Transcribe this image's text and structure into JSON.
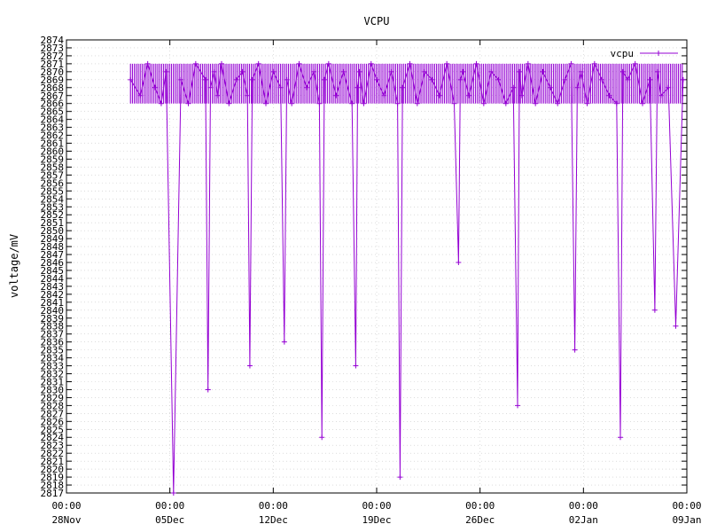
{
  "chart_data": {
    "type": "line",
    "title": "VCPU",
    "xlabel": "",
    "ylabel": "voltage/mV",
    "legend": {
      "position": "top-right"
    },
    "grid": true,
    "ylim": [
      2817,
      2874
    ],
    "xlim": [
      "2023-11-28 00:00",
      "2024-01-09 00:00"
    ],
    "x_ticks": [
      {
        "date": "2023-11-28",
        "time": "00:00",
        "label": "28Nov"
      },
      {
        "date": "2023-12-05",
        "time": "00:00",
        "label": "05Dec"
      },
      {
        "date": "2023-12-12",
        "time": "00:00",
        "label": "12Dec"
      },
      {
        "date": "2023-12-19",
        "time": "00:00",
        "label": "19Dec"
      },
      {
        "date": "2023-12-26",
        "time": "00:00",
        "label": "26Dec"
      },
      {
        "date": "2024-01-02",
        "time": "00:00",
        "label": "02Jan"
      },
      {
        "date": "2024-01-09",
        "time": "00:00",
        "label": "09Jan"
      }
    ],
    "series": [
      {
        "name": "vcpu",
        "color": "#9400d3",
        "marker": "+",
        "baseline_range": [
          2866,
          2871
        ],
        "x": [
          "2023-12-02 08:00",
          "2023-12-03 00:00",
          "2023-12-03 12:00",
          "2023-12-04 00:00",
          "2023-12-04 10:00",
          "2023-12-04 18:00",
          "2023-12-05 06:00",
          "2023-12-05 18:00",
          "2023-12-06 06:00",
          "2023-12-06 18:00",
          "2023-12-07 10:00",
          "2023-12-07 14:00",
          "2023-12-07 18:00",
          "2023-12-08 00:00",
          "2023-12-08 06:00",
          "2023-12-08 12:00",
          "2023-12-09 00:00",
          "2023-12-09 12:00",
          "2023-12-09 22:00",
          "2023-12-10 06:00",
          "2023-12-10 10:00",
          "2023-12-10 14:00",
          "2023-12-11 00:00",
          "2023-12-11 12:00",
          "2023-12-12 00:00",
          "2023-12-12 12:00",
          "2023-12-12 18:00",
          "2023-12-12 22:00",
          "2023-12-13 06:00",
          "2023-12-13 18:00",
          "2023-12-14 06:00",
          "2023-12-14 18:00",
          "2023-12-15 03:00",
          "2023-12-15 07:00",
          "2023-12-15 11:00",
          "2023-12-15 18:00",
          "2023-12-16 06:00",
          "2023-12-16 18:00",
          "2023-12-17 08:00",
          "2023-12-17 14:00",
          "2023-12-17 17:00",
          "2023-12-17 20:00",
          "2023-12-18 03:00",
          "2023-12-18 15:00",
          "2023-12-19 00:00",
          "2023-12-19 12:00",
          "2023-12-20 00:00",
          "2023-12-20 10:00",
          "2023-12-20 14:00",
          "2023-12-20 18:00",
          "2023-12-21 06:00",
          "2023-12-21 18:00",
          "2023-12-22 06:00",
          "2023-12-22 18:00",
          "2023-12-23 06:00",
          "2023-12-23 18:00",
          "2023-12-24 06:00",
          "2023-12-24 13:00",
          "2023-12-24 16:00",
          "2023-12-24 20:00",
          "2023-12-25 06:00",
          "2023-12-25 18:00",
          "2023-12-26 06:00",
          "2023-12-26 18:00",
          "2023-12-27 06:00",
          "2023-12-27 18:00",
          "2023-12-28 06:00",
          "2023-12-28 13:00",
          "2023-12-28 16:00",
          "2023-12-28 20:00",
          "2023-12-29 06:00",
          "2023-12-29 18:00",
          "2023-12-30 06:00",
          "2023-12-30 18:00",
          "2023-12-31 06:00",
          "2023-12-31 18:00",
          "2024-01-01 04:00",
          "2024-01-01 10:00",
          "2024-01-01 14:00",
          "2024-01-01 20:00",
          "2024-01-02 06:00",
          "2024-01-02 18:00",
          "2024-01-03 06:00",
          "2024-01-03 18:00",
          "2024-01-04 06:00",
          "2024-01-04 12:00",
          "2024-01-04 16:00",
          "2024-01-05 00:00",
          "2024-01-05 12:00",
          "2024-01-06 00:00",
          "2024-01-06 12:00",
          "2024-01-06 20:00",
          "2024-01-07 00:00",
          "2024-01-07 06:00",
          "2024-01-07 18:00",
          "2024-01-08 06:00",
          "2024-01-08 18:00"
        ],
        "y": [
          2869,
          2867,
          2871,
          2868,
          2866,
          2870,
          2817,
          2869,
          2866,
          2871,
          2869,
          2830,
          2868,
          2870,
          2867,
          2871,
          2866,
          2869,
          2870,
          2867,
          2833,
          2869,
          2871,
          2866,
          2870,
          2868,
          2836,
          2869,
          2866,
          2871,
          2868,
          2870,
          2866,
          2824,
          2869,
          2871,
          2867,
          2870,
          2866,
          2833,
          2868,
          2870,
          2866,
          2871,
          2869,
          2867,
          2870,
          2866,
          2819,
          2868,
          2871,
          2866,
          2870,
          2869,
          2867,
          2871,
          2866,
          2846,
          2869,
          2870,
          2867,
          2871,
          2866,
          2870,
          2869,
          2866,
          2868,
          2828,
          2870,
          2867,
          2871,
          2866,
          2870,
          2868,
          2866,
          2869,
          2871,
          2835,
          2868,
          2870,
          2866,
          2871,
          2869,
          2867,
          2866,
          2824,
          2870,
          2869,
          2871,
          2866,
          2869,
          2840,
          2870,
          2867,
          2868,
          2838,
          2869
        ]
      }
    ]
  }
}
